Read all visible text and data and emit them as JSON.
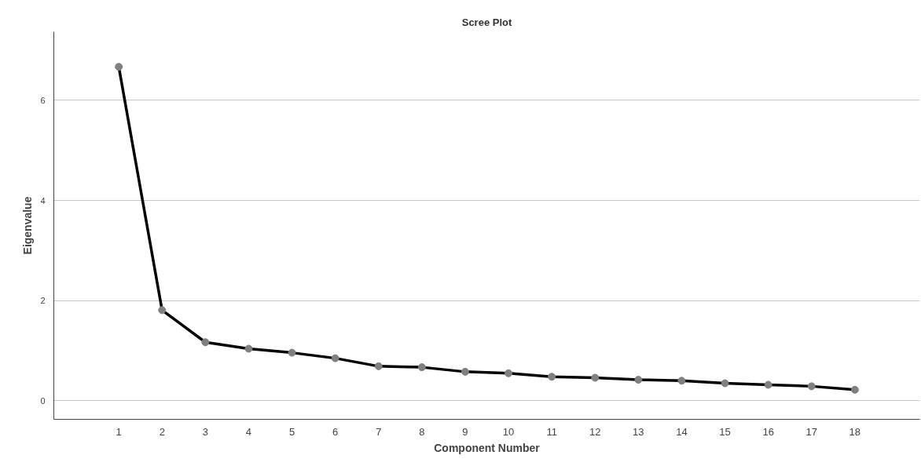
{
  "chart_data": {
    "type": "line",
    "title": "Scree Plot",
    "xlabel": "Component Number",
    "ylabel": "Eigenvalue",
    "x": [
      1,
      2,
      3,
      4,
      5,
      6,
      7,
      8,
      9,
      10,
      11,
      12,
      13,
      14,
      15,
      16,
      17,
      18
    ],
    "series": [
      {
        "color": "#000000",
        "values": [
          6.67,
          1.81,
          1.17,
          1.04,
          0.96,
          0.85,
          0.69,
          0.67,
          0.58,
          0.55,
          0.48,
          0.46,
          0.42,
          0.4,
          0.35,
          0.32,
          0.29,
          0.22
        ]
      }
    ],
    "xlim": [
      -0.5,
      19.5
    ],
    "ylim": [
      -0.37,
      7.37
    ],
    "xticks": [
      1,
      2,
      3,
      4,
      5,
      6,
      7,
      8,
      9,
      10,
      11,
      12,
      13,
      14,
      15,
      16,
      17,
      18
    ],
    "yticks": [
      0,
      2,
      4,
      6
    ],
    "grid": "y",
    "marker": "circle",
    "line_style": "solid"
  }
}
